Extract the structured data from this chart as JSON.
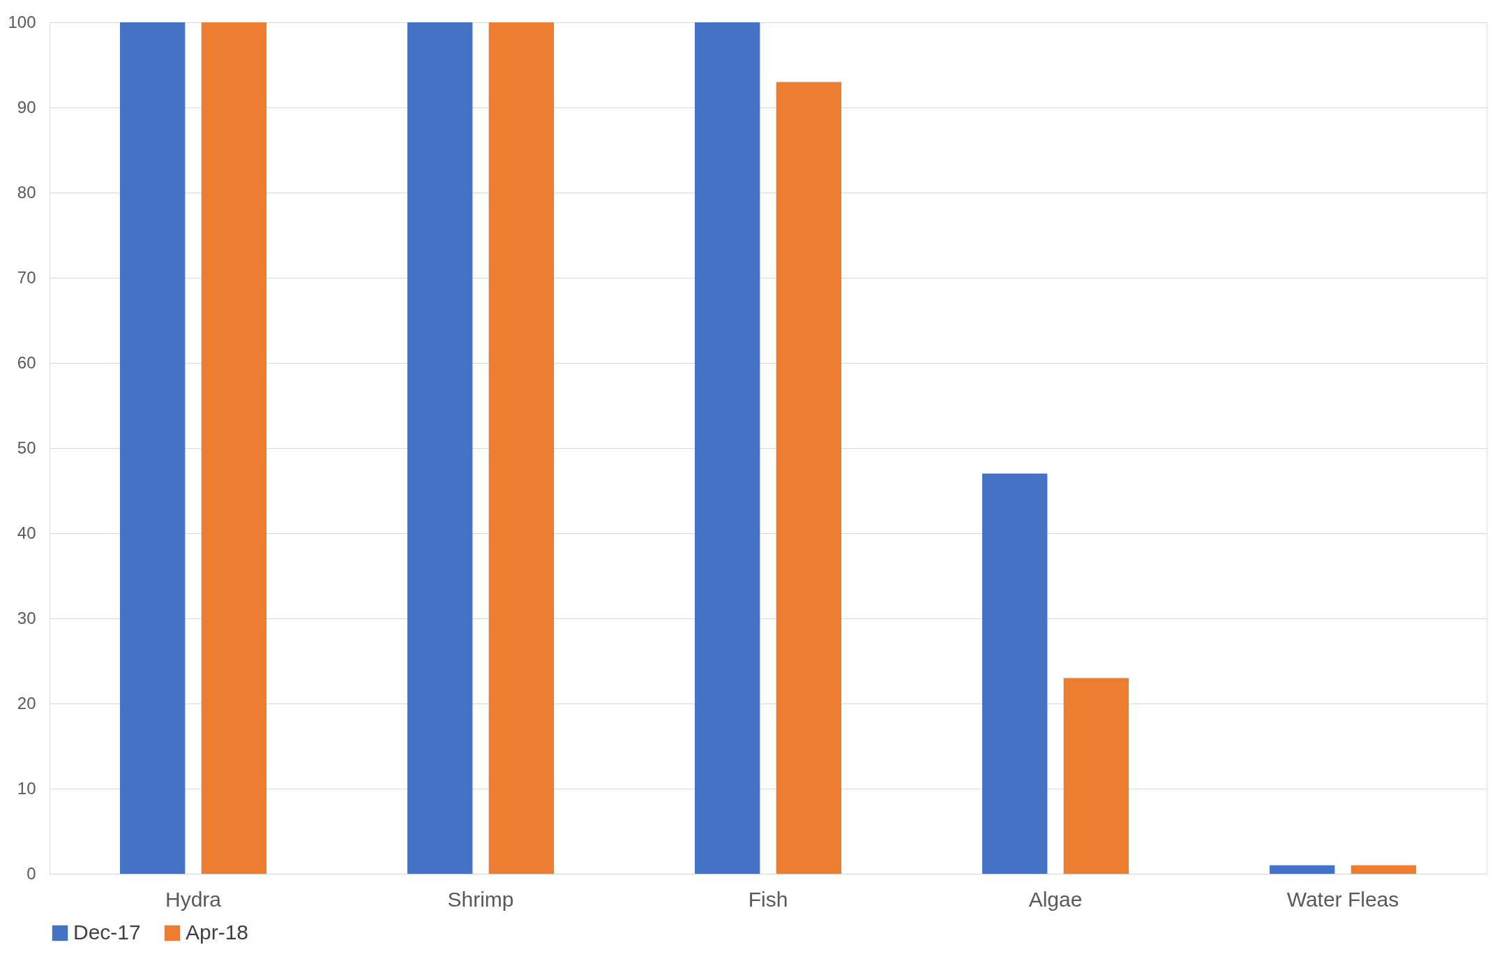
{
  "chart_data": {
    "type": "bar",
    "categories": [
      "Hydra",
      "Shrimp",
      "Fish",
      "Algae",
      "Water Fleas"
    ],
    "series": [
      {
        "name": "Dec-17",
        "color": "#4472c4",
        "values": [
          100,
          100,
          100,
          47,
          1
        ]
      },
      {
        "name": "Apr-18",
        "color": "#ed7d31",
        "values": [
          100,
          100,
          93,
          23,
          1
        ]
      }
    ],
    "ylim": [
      0,
      100
    ],
    "yticks": [
      0,
      10,
      20,
      30,
      40,
      50,
      60,
      70,
      80,
      90,
      100
    ],
    "grid": "y",
    "legend": "bottom"
  }
}
